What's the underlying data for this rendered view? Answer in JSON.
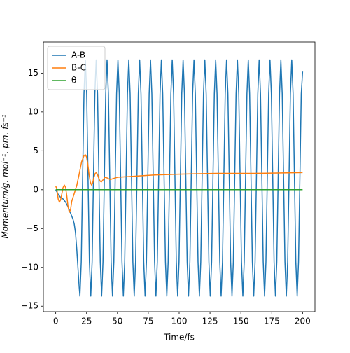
{
  "chart_data": {
    "type": "line",
    "xlabel": "Time/fs",
    "ylabel": "Momentum/g. mol⁻¹. pm. fs⁻¹",
    "xlim": [
      -10,
      210
    ],
    "ylim": [
      -15.7,
      19
    ],
    "xticks": [
      0,
      25,
      50,
      75,
      100,
      125,
      150,
      175,
      200
    ],
    "yticks": [
      {
        "value": -15,
        "label": "−15"
      },
      {
        "value": -10,
        "label": "−10"
      },
      {
        "value": -5,
        "label": "−5"
      },
      0,
      5,
      10,
      15
    ],
    "legend": "upper left",
    "series": [
      {
        "name": "A-B",
        "color": "#1f77b4",
        "x": [
          0,
          2,
          4,
          6,
          8,
          10,
          12,
          14,
          15,
          16,
          17,
          18,
          19,
          19.6,
          20.7,
          21.8,
          22.9,
          24.0,
          25.1,
          26.2,
          27.3,
          28.4,
          29.5,
          30.6,
          31.7,
          32.8,
          33.9,
          35.0,
          36.1,
          37.2,
          38.3,
          39.4,
          40.5,
          41.6,
          42.7,
          43.8,
          44.9,
          46.0,
          47.1,
          48.2,
          49.3,
          50.4,
          51.5,
          52.6,
          53.7,
          54.8,
          55.9,
          57.0,
          58.1,
          59.2,
          60.3,
          61.4,
          62.5,
          63.6,
          64.7,
          65.8,
          66.9,
          68.0,
          69.1,
          70.2,
          71.3,
          72.4,
          73.5,
          74.6,
          75.7,
          76.8,
          77.9,
          79.0,
          80.1,
          81.2,
          82.3,
          83.4,
          84.5,
          85.6,
          86.7,
          87.8,
          88.9,
          90.0,
          91.1,
          92.2,
          93.3,
          94.4,
          95.5,
          96.6,
          97.7,
          98.8,
          99.9,
          101.0,
          102.1,
          103.2,
          104.3,
          105.4,
          106.5,
          107.6,
          108.7,
          109.8,
          110.9,
          112.0,
          113.1,
          114.2,
          115.3,
          116.4,
          117.5,
          118.6,
          119.7,
          120.8,
          121.9,
          123.0,
          124.1,
          125.2,
          126.3,
          127.4,
          128.5,
          129.6,
          130.7,
          131.8,
          132.9,
          134.0,
          135.1,
          136.2,
          137.3,
          138.4,
          139.5,
          140.6,
          141.7,
          142.8,
          143.9,
          145.0,
          146.1,
          147.2,
          148.3,
          149.4,
          150.5,
          151.6,
          152.7,
          153.8,
          154.9,
          156.0,
          157.1,
          158.2,
          159.3,
          160.4,
          161.5,
          162.6,
          163.7,
          164.8,
          165.9,
          167.0,
          168.1,
          169.2,
          170.3,
          171.4,
          172.5,
          173.6,
          174.7,
          175.8,
          176.9,
          178.0,
          179.1,
          180.2,
          181.3,
          182.4,
          183.5,
          184.6,
          185.7,
          186.8,
          187.9,
          189.0,
          190.1,
          191.2,
          192.3,
          193.4,
          194.5,
          195.6,
          196.7,
          197.8,
          198.9,
          200.0
        ],
        "values": [
          0,
          -0.6,
          -1.0,
          -1.2,
          -1.6,
          -2.2,
          -3.0,
          -3.8,
          -4.4,
          -5.5,
          -7.5,
          -10,
          -12.5,
          -13.7,
          -9.3,
          1.5,
          12.3,
          16.7,
          12.3,
          1.5,
          -9.3,
          -13.7,
          -9.3,
          1.5,
          12.3,
          16.7,
          12.3,
          1.5,
          -9.3,
          -13.7,
          -9.3,
          1.5,
          12.3,
          16.7,
          12.3,
          1.5,
          -9.3,
          -13.7,
          -9.3,
          1.5,
          12.3,
          16.7,
          12.3,
          1.5,
          -9.3,
          -13.7,
          -9.3,
          1.5,
          12.3,
          16.7,
          12.3,
          1.5,
          -9.3,
          -13.7,
          -9.3,
          1.5,
          12.3,
          16.7,
          12.3,
          1.5,
          -9.3,
          -13.7,
          -9.3,
          1.5,
          12.3,
          16.7,
          12.3,
          1.5,
          -9.3,
          -13.7,
          -9.3,
          1.5,
          12.3,
          16.7,
          12.3,
          1.5,
          -9.3,
          -13.7,
          -9.3,
          1.5,
          12.3,
          16.7,
          12.3,
          1.5,
          -9.3,
          -13.7,
          -9.3,
          1.5,
          12.3,
          16.7,
          12.3,
          1.5,
          -9.3,
          -13.7,
          -9.3,
          1.5,
          12.3,
          16.7,
          12.3,
          1.5,
          -9.3,
          -13.7,
          -9.3,
          1.5,
          12.3,
          16.7,
          12.3,
          1.5,
          -9.3,
          -13.7,
          -9.3,
          1.5,
          12.3,
          16.7,
          12.3,
          1.5,
          -9.3,
          -13.7,
          -9.3,
          1.5,
          12.3,
          16.7,
          12.3,
          1.5,
          -9.3,
          -13.7,
          -9.3,
          1.5,
          12.3,
          16.7,
          12.3,
          1.5,
          -9.3,
          -13.7,
          -9.3,
          1.5,
          12.3,
          16.7,
          12.3,
          1.5,
          -9.3,
          -13.7,
          -9.3,
          1.5,
          12.3,
          16.7,
          12.3,
          1.5,
          -9.3,
          -13.7,
          -9.3,
          1.5,
          12.3,
          16.7,
          12.3,
          1.5,
          -9.3,
          -13.7,
          -9.3,
          1.5,
          12.3,
          16.7,
          12.3,
          1.5,
          -9.3,
          -13.7,
          -9.3,
          1.5,
          12.3,
          16.7,
          12.3,
          1.5,
          -9.3,
          -13.7,
          -9.3,
          1.5,
          12.3,
          15.2
        ]
      },
      {
        "name": "B-C",
        "color": "#ff7f0e",
        "x": [
          0,
          1,
          2,
          3,
          4,
          5,
          6,
          7,
          8,
          9,
          10,
          11,
          12,
          13,
          15,
          17,
          19,
          21,
          23,
          24,
          25,
          26,
          27,
          28,
          29,
          30,
          31,
          32,
          33,
          34,
          35,
          36,
          37,
          38,
          40,
          42,
          44,
          46,
          50,
          60,
          70,
          80,
          100,
          130,
          160,
          200
        ],
        "values": [
          0.5,
          0,
          -1.2,
          -1.6,
          -1.3,
          -0.5,
          0.3,
          0.6,
          0.3,
          -0.8,
          -2.2,
          -2.9,
          -2.6,
          -1.5,
          -0.5,
          0.5,
          2,
          3.6,
          4.4,
          4.5,
          4.2,
          3.3,
          2,
          1,
          0.6,
          0.9,
          1.6,
          2.1,
          2.2,
          1.9,
          1.4,
          1.1,
          1.0,
          1.2,
          1.6,
          1.5,
          1.3,
          1.4,
          1.6,
          1.7,
          1.8,
          1.9,
          2.0,
          2.1,
          2.1,
          2.2
        ]
      },
      {
        "name": "θ",
        "color": "#2ca02c",
        "x": [
          0,
          200
        ],
        "values": [
          0,
          0
        ]
      }
    ]
  }
}
